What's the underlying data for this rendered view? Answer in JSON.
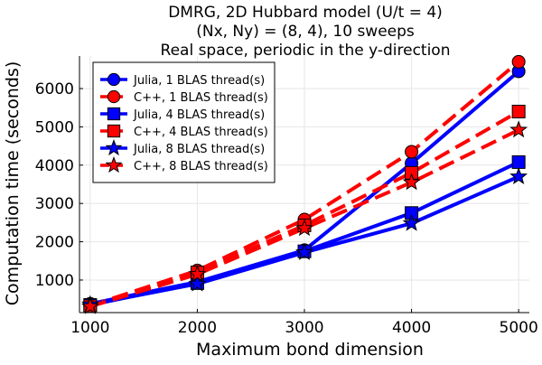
{
  "chart_data": {
    "type": "line",
    "title_lines": [
      "DMRG, 2D Hubbard model (U/t = 4)",
      "(Nx, Ny) = (8, 4), 10 sweeps",
      "Real space, periodic in the y-direction"
    ],
    "xlabel": "Maximum bond dimension",
    "ylabel": "Computation time (seconds)",
    "x": [
      1000,
      2000,
      3000,
      4000,
      5000
    ],
    "xlim": [
      900,
      5100
    ],
    "ylim": [
      150,
      6850
    ],
    "xticks": [
      "1000",
      "2000",
      "3000",
      "4000",
      "5000"
    ],
    "yticks": [
      "1000",
      "2000",
      "3000",
      "4000",
      "5000",
      "6000"
    ],
    "grid": true,
    "legend_position": "top-left",
    "series": [
      {
        "name": "Julia, 1 BLAS thread(s)",
        "values": [
          380,
          950,
          1780,
          4050,
          6450
        ],
        "color": "#0000ff",
        "line": "solid",
        "marker": "circle"
      },
      {
        "name": "C++, 1 BLAS thread(s)",
        "values": [
          330,
          1250,
          2580,
          4350,
          6700
        ],
        "color": "#ff0000",
        "line": "dashed",
        "marker": "circle"
      },
      {
        "name": "Julia, 4 BLAS thread(s)",
        "values": [
          350,
          920,
          1750,
          2750,
          4080
        ],
        "color": "#0000ff",
        "line": "solid",
        "marker": "square"
      },
      {
        "name": "C++, 4 BLAS thread(s)",
        "values": [
          320,
          1200,
          2430,
          3800,
          5400
        ],
        "color": "#ff0000",
        "line": "dashed",
        "marker": "square"
      },
      {
        "name": "Julia, 8 BLAS thread(s)",
        "values": [
          360,
          900,
          1720,
          2480,
          3700
        ],
        "color": "#0000ff",
        "line": "solid",
        "marker": "star"
      },
      {
        "name": "C++, 8 BLAS thread(s)",
        "values": [
          310,
          1150,
          2350,
          3550,
          4920
        ],
        "color": "#ff0000",
        "line": "dashed",
        "marker": "star"
      }
    ]
  }
}
